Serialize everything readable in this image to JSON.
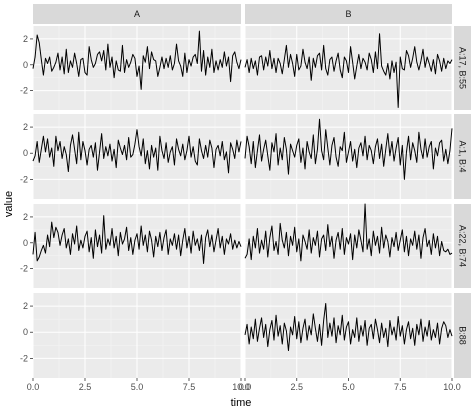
{
  "chart_data": {
    "type": "line",
    "xlabel": "time",
    "ylabel": "value",
    "col_facets": [
      "A",
      "B"
    ],
    "row_facets": [
      "A:17, B:55",
      "A:1, B:4",
      "A:22, B:74",
      "B:88"
    ],
    "xlim": [
      0,
      10
    ],
    "ylim": [
      -3.5,
      3
    ],
    "x_ticks": [
      0,
      2.5,
      5,
      7.5,
      10
    ],
    "x_tick_labels": [
      "0.0",
      "2.5",
      "5.0",
      "7.5",
      "10.0"
    ],
    "y_ticks": [
      -2,
      0,
      2
    ],
    "y_tick_labels": [
      "-2",
      "0",
      "2"
    ],
    "grid": true,
    "x_step": 0.1,
    "panels": [
      {
        "row": 0,
        "col": 0,
        "values": [
          -0.3,
          0.6,
          2.3,
          1.7,
          0.4,
          -0.8,
          0.5,
          0.1,
          0.6,
          -0.5,
          -0.2,
          0.2,
          0.9,
          -0.4,
          0.6,
          -0.7,
          1.2,
          -0.6,
          0.3,
          -0.2,
          0.9,
          0.1,
          -0.9,
          0.4,
          0.5,
          -0.6,
          -0.8,
          1.4,
          0.4,
          -0.2,
          0.1,
          0.8,
          1.0,
          0.3,
          1.1,
          -0.4,
          1.6,
          -0.2,
          0.6,
          -1.0,
          0.3,
          -0.4,
          -0.5,
          1.5,
          -0.6,
          0.4,
          -0.2,
          0.2,
          0.8,
          0.5,
          -0.9,
          -0.1,
          -1.9,
          0.7,
          0.2,
          1.4,
          -0.3,
          1.0,
          0.4,
          0.3,
          -0.9,
          -0.2,
          0.6,
          -0.3,
          0.5,
          -0.2,
          0.7,
          -0.4,
          0.1,
          1.6,
          0.3,
          -0.1,
          -0.9,
          0.9,
          -0.6,
          0.4,
          -0.1,
          0.6,
          0.8,
          0.1,
          2.6,
          -0.5,
          1.1,
          -0.8,
          0.6,
          -0.2,
          1.2,
          -0.6,
          0.3,
          -0.4,
          0.4,
          -0.2,
          1.0,
          -0.1,
          0.6,
          -1.3,
          0.7,
          1.0,
          0.2,
          -0.3,
          0.4
        ]
      },
      {
        "row": 0,
        "col": 1,
        "values": [
          -0.2,
          0.4,
          -0.6,
          0.5,
          -0.3,
          0.3,
          -0.8,
          0.6,
          0.7,
          -0.4,
          0.6,
          -0.1,
          1.1,
          -0.3,
          0.5,
          -0.6,
          0.5,
          0.1,
          -0.7,
          0.4,
          1.5,
          -0.2,
          0.8,
          0.1,
          -0.9,
          0.8,
          -0.4,
          -0.1,
          1.2,
          0.2,
          -0.3,
          0.6,
          -1.2,
          0.5,
          -0.2,
          0.7,
          0.9,
          -0.4,
          1.5,
          -0.3,
          -0.8,
          0.4,
          0.6,
          -0.5,
          0.3,
          0.9,
          -0.4,
          -1.0,
          0.6,
          0.3,
          -0.6,
          1.4,
          0.2,
          -1.1,
          -0.1,
          0.8,
          -0.3,
          0.5,
          0.2,
          -0.4,
          0.9,
          0.4,
          -0.6,
          1.0,
          -0.3,
          2.4,
          -0.1,
          -0.5,
          -0.8,
          0.1,
          -1.1,
          0.3,
          -0.6,
          0.2,
          -3.3,
          0.6,
          -0.3,
          -0.4,
          1.1,
          0.7,
          -0.2,
          0.5,
          1.4,
          0.2,
          -0.4,
          0.3,
          1.2,
          -0.2,
          0.6,
          0.1,
          -0.5,
          0.4,
          -0.7,
          0.8,
          0.3,
          -0.5,
          0.5,
          -0.3,
          0.3,
          0.1,
          0.4
        ]
      },
      {
        "row": 1,
        "col": 0,
        "values": [
          -0.6,
          -0.2,
          0.9,
          -0.7,
          0.3,
          1.3,
          0.1,
          1.1,
          -0.3,
          0.4,
          -1.0,
          1.3,
          0.2,
          0.9,
          -0.4,
          0.5,
          -0.1,
          -1.4,
          0.6,
          1.4,
          0.3,
          -0.8,
          1.6,
          -0.5,
          0.9,
          0.2,
          -0.9,
          0.3,
          0.6,
          -0.3,
          0.8,
          -1.3,
          0.1,
          1.5,
          -0.4,
          0.5,
          -0.2,
          0.7,
          -0.6,
          0.3,
          -1.1,
          1.0,
          0.4,
          -0.1,
          0.6,
          -0.5,
          1.2,
          -0.3,
          -0.1,
          0.7,
          1.8,
          0.5,
          -0.2,
          1.1,
          -0.8,
          0.2,
          -1.2,
          0.6,
          -0.3,
          0.4,
          -1.3,
          1.3,
          0.2,
          -0.4,
          0.8,
          -0.7,
          0.1,
          0.5,
          -0.9,
          1.1,
          0.3,
          -0.2,
          0.7,
          -0.5,
          0.2,
          1.3,
          -0.3,
          0.5,
          -0.6,
          -0.9,
          1.1,
          0.2,
          -0.4,
          0.6,
          -0.3,
          1.0,
          0.4,
          -1.1,
          0.3,
          0.6,
          -0.2,
          0.9,
          -0.5,
          0.1,
          -1.5,
          0.8,
          0.3,
          -0.4,
          1.0,
          0.1,
          0.9
        ]
      },
      {
        "row": 1,
        "col": 1,
        "values": [
          -0.4,
          1.3,
          0.5,
          -0.8,
          0.9,
          -1.1,
          0.2,
          1.4,
          -0.6,
          0.3,
          1.0,
          -0.2,
          -1.3,
          0.8,
          0.1,
          1.5,
          -0.9,
          0.4,
          -0.5,
          1.2,
          0.3,
          -1.6,
          0.7,
          0.2,
          -0.3,
          0.6,
          1.1,
          -0.7,
          0.4,
          -1.2,
          0.9,
          0.1,
          -0.4,
          1.4,
          -0.8,
          0.3,
          2.6,
          0.2,
          -0.5,
          1.8,
          0.4,
          -0.9,
          0.6,
          1.2,
          -0.3,
          -1.0,
          0.5,
          0.2,
          1.6,
          -0.7,
          0.1,
          0.9,
          -0.6,
          0.3,
          -1.1,
          0.4,
          0.8,
          -0.2,
          1.3,
          -0.5,
          0.6,
          0.2,
          -0.8,
          0.5,
          1.1,
          -0.4,
          0.7,
          -1.0,
          0.3,
          1.5,
          -0.2,
          0.9,
          -0.6,
          0.4,
          1.2,
          -0.9,
          0.6,
          -2.0,
          0.1,
          1.3,
          -0.5,
          0.8,
          0.2,
          -0.7,
          1.6,
          0.3,
          -0.4,
          1.1,
          -0.3,
          0.5,
          0.9,
          -1.2,
          0.4,
          -0.2,
          0.8,
          1.0,
          -0.6,
          0.3,
          -0.8,
          0.2,
          1.9
        ]
      },
      {
        "row": 2,
        "col": 0,
        "values": [
          -0.9,
          0.8,
          -1.4,
          -1.1,
          -0.6,
          -0.2,
          -0.8,
          0.6,
          -0.3,
          1.6,
          0.4,
          1.2,
          0.8,
          -0.2,
          0.6,
          1.1,
          -0.4,
          0.3,
          -0.9,
          0.7,
          -0.1,
          1.3,
          -0.6,
          0.2,
          -0.4,
          0.5,
          0.9,
          -0.7,
          0.4,
          -1.2,
          1.0,
          -0.3,
          0.6,
          -0.8,
          2.1,
          -0.5,
          0.3,
          -0.2,
          1.1,
          -0.4,
          0.5,
          -1.0,
          0.8,
          -0.1,
          0.3,
          1.2,
          -0.6,
          0.4,
          -0.9,
          0.2,
          0.7,
          -0.5,
          1.3,
          -0.2,
          0.6,
          -0.7,
          0.9,
          0.2,
          -1.1,
          0.5,
          -0.3,
          0.8,
          -0.6,
          0.4,
          1.0,
          -0.9,
          0.3,
          -0.2,
          0.7,
          -0.5,
          0.6,
          -1.0,
          0.2,
          1.1,
          -0.4,
          0.5,
          -0.8,
          0.9,
          -0.2,
          0.3,
          -0.6,
          0.6,
          -1.6,
          0.4,
          1.0,
          -0.3,
          0.6,
          -0.7,
          0.2,
          1.1,
          -0.4,
          0.5,
          -0.9,
          0.3,
          -0.1,
          0.7,
          -0.5,
          0.2,
          -0.4,
          0.1,
          -0.3
        ]
      },
      {
        "row": 2,
        "col": 1,
        "values": [
          -1.2,
          -0.9,
          0.3,
          -1.3,
          0.5,
          -0.4,
          1.1,
          -0.8,
          0.2,
          -0.5,
          0.9,
          -1.1,
          0.4,
          1.3,
          -0.6,
          0.1,
          -0.9,
          1.5,
          0.2,
          -0.4,
          0.8,
          -1.0,
          0.5,
          -0.2,
          1.2,
          -0.7,
          0.3,
          -1.4,
          0.6,
          0.1,
          -0.5,
          1.0,
          -0.8,
          0.4,
          -0.2,
          0.9,
          -1.1,
          0.3,
          0.6,
          -0.6,
          1.4,
          -0.3,
          0.5,
          -1.2,
          0.2,
          0.8,
          -0.5,
          1.1,
          -0.9,
          0.4,
          -0.1,
          0.7,
          -1.3,
          0.6,
          -0.4,
          1.0,
          0.2,
          -0.7,
          3.0,
          -0.5,
          0.3,
          -1.0,
          0.9,
          -0.2,
          0.5,
          -0.8,
          1.2,
          -0.4,
          0.6,
          0.1,
          -1.1,
          0.4,
          -0.3,
          0.8,
          -0.6,
          0.2,
          1.0,
          -0.7,
          0.5,
          -1.0,
          0.3,
          -0.2,
          0.9,
          -0.5,
          0.6,
          -1.2,
          0.4,
          1.1,
          -0.3,
          0.2,
          -0.9,
          0.7,
          -0.4,
          0.5,
          -1.0,
          0.1,
          -0.6,
          -0.7,
          -0.5,
          -0.9,
          -0.8
        ]
      },
      {
        "row": 3,
        "col": 1,
        "values": [
          -0.2,
          0.6,
          -0.9,
          0.4,
          -0.5,
          1.0,
          -0.7,
          0.3,
          1.1,
          -0.4,
          0.6,
          -1.1,
          0.2,
          0.9,
          -0.6,
          1.3,
          -0.3,
          0.5,
          -0.9,
          0.7,
          0.1,
          -1.4,
          0.4,
          -0.2,
          1.2,
          -0.5,
          0.8,
          -0.8,
          0.3,
          1.0,
          -0.6,
          0.5,
          -0.2,
          1.4,
          0.3,
          -0.7,
          0.6,
          -1.0,
          0.9,
          2.2,
          -0.4,
          0.7,
          -0.3,
          1.1,
          -0.8,
          0.5,
          -0.2,
          1.3,
          -0.6,
          0.4,
          0.8,
          -0.9,
          0.2,
          -0.4,
          1.1,
          -0.7,
          0.5,
          -0.3,
          0.9,
          -1.0,
          0.3,
          0.6,
          -0.5,
          1.0,
          0.2,
          -0.8,
          0.7,
          -0.4,
          0.3,
          -1.1,
          0.9,
          -0.2,
          0.4,
          -0.6,
          1.2,
          -0.3,
          0.5,
          -0.9,
          0.2,
          0.8,
          -0.5,
          0.3,
          -1.0,
          0.6,
          -0.2,
          1.0,
          -0.7,
          0.4,
          -0.3,
          0.9,
          -0.6,
          0.2,
          -0.4,
          0.7,
          -0.9,
          0.3,
          0.8,
          0.5,
          -0.4,
          0.2,
          -0.3
        ]
      }
    ]
  }
}
